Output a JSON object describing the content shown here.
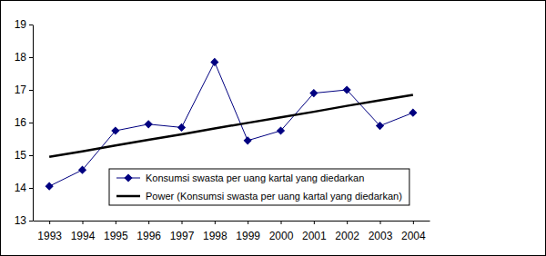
{
  "chart_data": {
    "type": "line",
    "categories": [
      "1993",
      "1994",
      "1995",
      "1996",
      "1997",
      "1998",
      "1999",
      "2000",
      "2001",
      "2002",
      "2003",
      "2004"
    ],
    "series": [
      {
        "name": "Konsumsi swasta per uang kartal yang diedarkan",
        "color": "#000080",
        "marker": "diamond",
        "line_style": "solid",
        "values": [
          14.05,
          14.55,
          15.75,
          15.95,
          15.85,
          17.85,
          15.45,
          15.75,
          16.9,
          17.0,
          15.9,
          16.3
        ]
      },
      {
        "name": "Power (Konsumsi swasta per uang kartal yang diedarkan)",
        "color": "#000000",
        "marker": "none",
        "line_style": "solid",
        "values": [
          14.95,
          15.12,
          15.3,
          15.47,
          15.64,
          15.82,
          15.99,
          16.16,
          16.33,
          16.51,
          16.68,
          16.85
        ]
      }
    ],
    "ylim": [
      13,
      19
    ],
    "yticks": [
      13,
      14,
      15,
      16,
      17,
      18,
      19
    ],
    "legend": "bottom"
  }
}
